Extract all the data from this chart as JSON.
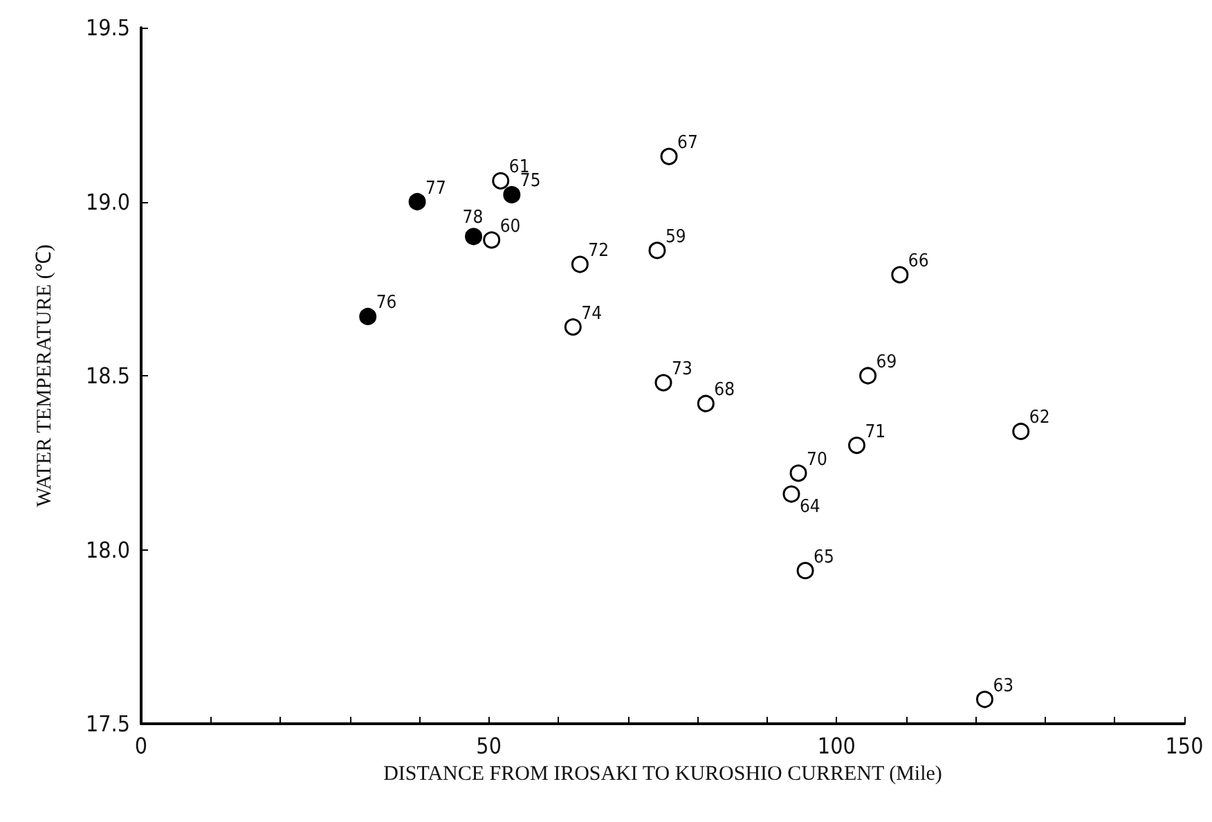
{
  "chart_data": {
    "type": "scatter",
    "xlabel": "DISTANCE FROM IROSAKI TO KUROSHIO CURRENT (Mile)",
    "ylabel": "WATER TEMPERATURE (℃)",
    "xlim": [
      0,
      150
    ],
    "xticks": [
      0,
      {
        "value": 10,
        "label": null
      },
      {
        "value": 20,
        "label": null
      },
      {
        "value": 30,
        "label": null
      },
      {
        "value": 40,
        "label": null
      },
      50,
      {
        "value": 60,
        "label": null
      },
      {
        "value": 70,
        "label": null
      },
      {
        "value": 80,
        "label": null
      },
      {
        "value": 90,
        "label": null
      },
      100,
      {
        "value": 110,
        "label": null
      },
      {
        "value": 120,
        "label": null
      },
      {
        "value": 130,
        "label": null
      },
      {
        "value": 140,
        "label": null
      },
      150
    ],
    "ylim": [
      17.5,
      19.5
    ],
    "yticks": [
      17.5,
      {
        "value": 18,
        "label": "18.0"
      },
      18.5,
      {
        "value": 19,
        "label": "19.0"
      },
      19.5
    ],
    "marker": "circle",
    "series": [
      {
        "color": "#000000",
        "x": [
          53.3,
          32.6,
          39.7,
          47.8
        ],
        "values": [
          19.02,
          18.67,
          19.0,
          18.9
        ]
      },
      {
        "color": "#ffffff",
        "x": [
          74.2,
          50.4,
          51.7,
          126.5,
          121.3,
          93.5,
          95.5,
          109.1,
          75.9,
          81.2,
          104.5,
          94.5,
          102.9,
          63.1,
          75.1,
          62.1
        ],
        "values": [
          18.86,
          18.89,
          19.06,
          18.34,
          17.57,
          18.16,
          17.94,
          18.79,
          19.13,
          18.42,
          18.5,
          18.22,
          18.3,
          18.82,
          18.48,
          18.64
        ]
      }
    ],
    "annotations": [
      {
        "text": "75",
        "x": 53.3,
        "y": 19.02
      },
      {
        "text": "76",
        "x": 32.6,
        "y": 18.67
      },
      {
        "text": "77",
        "x": 39.7,
        "y": 19.0
      },
      {
        "text": "78",
        "x": 47.8,
        "y": 18.9
      },
      {
        "text": "59",
        "x": 74.2,
        "y": 18.86
      },
      {
        "text": "60",
        "x": 50.4,
        "y": 18.89
      },
      {
        "text": "61",
        "x": 51.7,
        "y": 19.06
      },
      {
        "text": "62",
        "x": 126.5,
        "y": 18.34
      },
      {
        "text": "63",
        "x": 121.3,
        "y": 17.57
      },
      {
        "text": "64",
        "x": 93.5,
        "y": 18.16
      },
      {
        "text": "65",
        "x": 95.5,
        "y": 17.94
      },
      {
        "text": "66",
        "x": 109.1,
        "y": 18.79
      },
      {
        "text": "67",
        "x": 75.9,
        "y": 19.13
      },
      {
        "text": "68",
        "x": 81.2,
        "y": 18.42
      },
      {
        "text": "69",
        "x": 104.5,
        "y": 18.5
      },
      {
        "text": "70",
        "x": 94.5,
        "y": 18.22
      },
      {
        "text": "71",
        "x": 102.9,
        "y": 18.3
      },
      {
        "text": "72",
        "x": 63.1,
        "y": 18.82
      },
      {
        "text": "73",
        "x": 75.1,
        "y": 18.48
      },
      {
        "text": "74",
        "x": 62.1,
        "y": 18.64
      }
    ]
  }
}
